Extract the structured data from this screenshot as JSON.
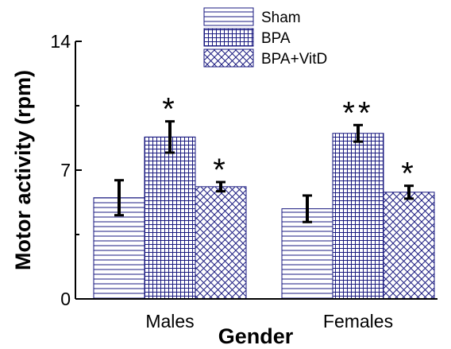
{
  "chart_data": {
    "type": "bar",
    "categories": [
      "Males",
      "Females"
    ],
    "series": [
      {
        "name": "Sham",
        "values": [
          5.5,
          4.9
        ],
        "errors": [
          0.95,
          0.72
        ],
        "pattern": "horizontal-lines",
        "annotations": [
          "",
          ""
        ]
      },
      {
        "name": "BPA",
        "values": [
          8.8,
          9.0
        ],
        "errors": [
          0.85,
          0.45
        ],
        "pattern": "grid",
        "annotations": [
          "*",
          "**"
        ]
      },
      {
        "name": "BPA+VitD",
        "values": [
          6.1,
          5.8
        ],
        "errors": [
          0.25,
          0.35
        ],
        "pattern": "crosshatch",
        "annotations": [
          "*",
          "*"
        ]
      }
    ],
    "xlabel": "Gender",
    "ylabel": "Motor activity (rpm)",
    "ylim": [
      0,
      14
    ],
    "yticks": [
      "0",
      "7",
      "14"
    ],
    "legend_position": "top-center",
    "pattern_color": "#1a1a80",
    "grid": false
  }
}
